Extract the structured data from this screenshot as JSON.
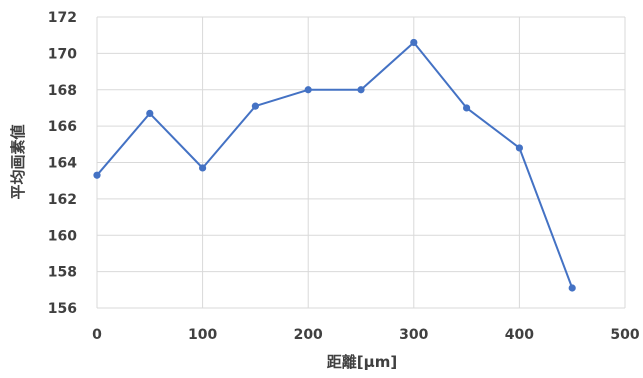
{
  "chart_data": {
    "type": "line",
    "title": "",
    "xlabel": "距離[μm]",
    "ylabel": "平均画素値",
    "xlim": [
      0,
      500
    ],
    "ylim": [
      156,
      172
    ],
    "xticks": [
      0,
      100,
      200,
      300,
      400,
      500
    ],
    "yticks": [
      156,
      158,
      160,
      162,
      164,
      166,
      168,
      170,
      172
    ],
    "grid": true,
    "legend": "none",
    "series": [
      {
        "color": "#4472c4",
        "marker": "circle",
        "x": [
          0,
          50,
          100,
          150,
          200,
          250,
          300,
          350,
          400,
          450
        ],
        "y": [
          163.3,
          166.7,
          163.7,
          167.1,
          168.0,
          168.0,
          170.6,
          167.0,
          164.8,
          157.1
        ]
      }
    ]
  }
}
